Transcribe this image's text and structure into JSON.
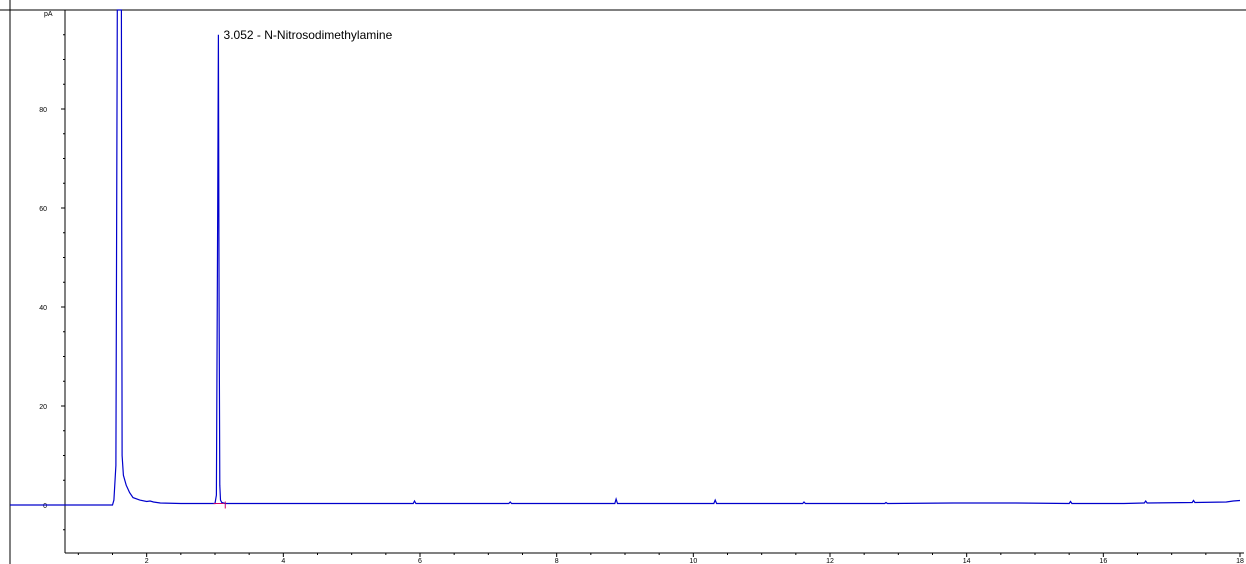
{
  "chart_data": {
    "type": "line",
    "title": "",
    "xlabel": "",
    "ylabel": "pA",
    "xlim": [
      0,
      18
    ],
    "ylim": [
      -10,
      100
    ],
    "y_ticks": [
      0,
      20,
      40,
      60,
      80
    ],
    "x_ticks": [
      2,
      4,
      6,
      8,
      10,
      12,
      14,
      16,
      18
    ],
    "grid": false,
    "colors": {
      "trace": "#0000cc",
      "axis": "#000000",
      "baseline_marker": "#cc0066"
    },
    "series": [
      {
        "values_note_free": true,
        "x": [
          0,
          1.5,
          1.52,
          1.55,
          1.57,
          1.6,
          1.61,
          1.62,
          1.63,
          1.64,
          1.66,
          1.7,
          1.75,
          1.8,
          1.9,
          2.0,
          2.05,
          2.1,
          2.2,
          2.5,
          3.0,
          3.02,
          3.04,
          3.05,
          3.06,
          3.07,
          3.08,
          3.1,
          3.15,
          3.2,
          4.0,
          5.9,
          5.92,
          5.94,
          7.3,
          7.32,
          7.34,
          8.85,
          8.87,
          8.89,
          10.3,
          10.32,
          10.34,
          11.6,
          11.62,
          11.64,
          12.8,
          12.82,
          12.84,
          13.8,
          14.7,
          15.5,
          15.52,
          15.54,
          16.3,
          16.6,
          16.62,
          16.64,
          17.3,
          17.32,
          17.34,
          17.8,
          17.9,
          18.0
        ],
        "y": [
          0,
          0,
          1,
          8,
          100,
          100,
          100,
          100,
          100,
          10,
          6,
          4,
          2.5,
          1.5,
          1,
          0.7,
          0.8,
          0.6,
          0.4,
          0.3,
          0.3,
          2,
          60,
          95,
          40,
          4,
          1,
          0.5,
          0.3,
          0.3,
          0.3,
          0.3,
          0.8,
          0.3,
          0.3,
          0.6,
          0.3,
          0.3,
          1.2,
          0.3,
          0.3,
          1,
          0.3,
          0.3,
          0.6,
          0.3,
          0.3,
          0.5,
          0.3,
          0.4,
          0.4,
          0.3,
          0.7,
          0.3,
          0.3,
          0.4,
          0.8,
          0.4,
          0.5,
          0.9,
          0.5,
          0.6,
          0.8,
          0.9
        ]
      }
    ],
    "annotations": [
      {
        "x": 3.052,
        "y": 95,
        "text": "3.052 -  N-Nitrosodimethylamine"
      }
    ]
  }
}
